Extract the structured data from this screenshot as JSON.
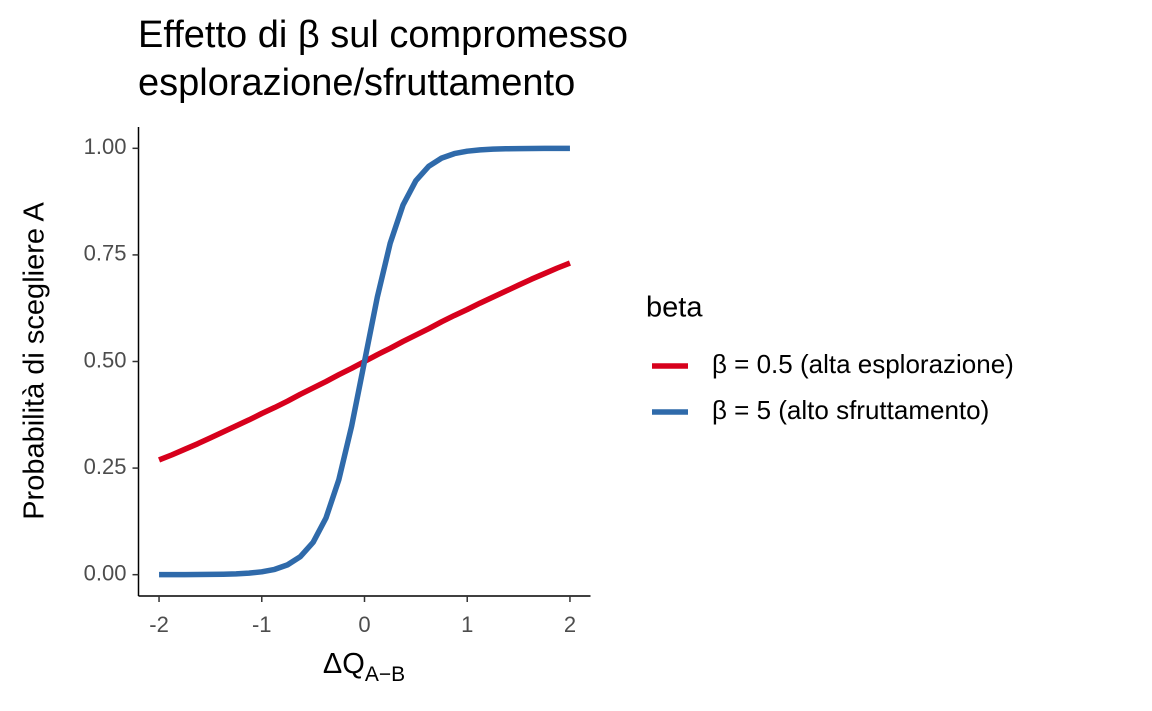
{
  "chart_data": {
    "type": "line",
    "title": [
      "Effetto di β sul compromesso",
      "esplorazione/sfruttamento"
    ],
    "x_label": "ΔQ",
    "x_label_sub": "A−B",
    "y_label": "Probabilità di scegliere A",
    "legend_title": "beta",
    "legend_position": "right",
    "x": [
      -2,
      -1.875,
      -1.75,
      -1.625,
      -1.5,
      -1.375,
      -1.25,
      -1.125,
      -1,
      -0.875,
      -0.75,
      -0.625,
      -0.5,
      -0.375,
      -0.25,
      -0.125,
      0,
      0.125,
      0.25,
      0.375,
      0.5,
      0.625,
      0.75,
      0.875,
      1,
      1.125,
      1.25,
      1.375,
      1.5,
      1.625,
      1.75,
      1.875,
      2
    ],
    "series": [
      {
        "name": "β = 0.5 (alta esplorazione)",
        "color": "#d7001c",
        "values": [
          0.269,
          0.281,
          0.294,
          0.307,
          0.321,
          0.335,
          0.349,
          0.363,
          0.378,
          0.392,
          0.407,
          0.423,
          0.438,
          0.453,
          0.469,
          0.484,
          0.5,
          0.516,
          0.531,
          0.547,
          0.562,
          0.577,
          0.593,
          0.608,
          0.622,
          0.637,
          0.651,
          0.665,
          0.679,
          0.693,
          0.706,
          0.719,
          0.731
        ]
      },
      {
        "name": "β = 5 (alto sfruttamento)",
        "color": "#2f6aaa",
        "values": [
          0.0,
          0.0001,
          0.0002,
          0.0003,
          0.0006,
          0.001,
          0.0019,
          0.0036,
          0.0067,
          0.0124,
          0.023,
          0.0421,
          0.0759,
          0.133,
          0.2227,
          0.3487,
          0.5,
          0.6513,
          0.7773,
          0.867,
          0.9241,
          0.9579,
          0.977,
          0.9876,
          0.9933,
          0.9964,
          0.9981,
          0.999,
          0.9994,
          0.9997,
          0.9998,
          0.9999,
          1.0
        ]
      }
    ],
    "xlim": [
      -2.2,
      2.2
    ],
    "xticks": [
      -2,
      -1,
      0,
      1,
      2
    ],
    "ylim": [
      -0.05,
      1.05
    ],
    "yticks": [
      {
        "value": 0,
        "label": "0.00"
      },
      {
        "value": 0.25,
        "label": "0.25"
      },
      {
        "value": 0.5,
        "label": "0.50"
      },
      {
        "value": 0.75,
        "label": "0.75"
      },
      {
        "value": 1,
        "label": "1.00"
      }
    ],
    "grid": false
  }
}
